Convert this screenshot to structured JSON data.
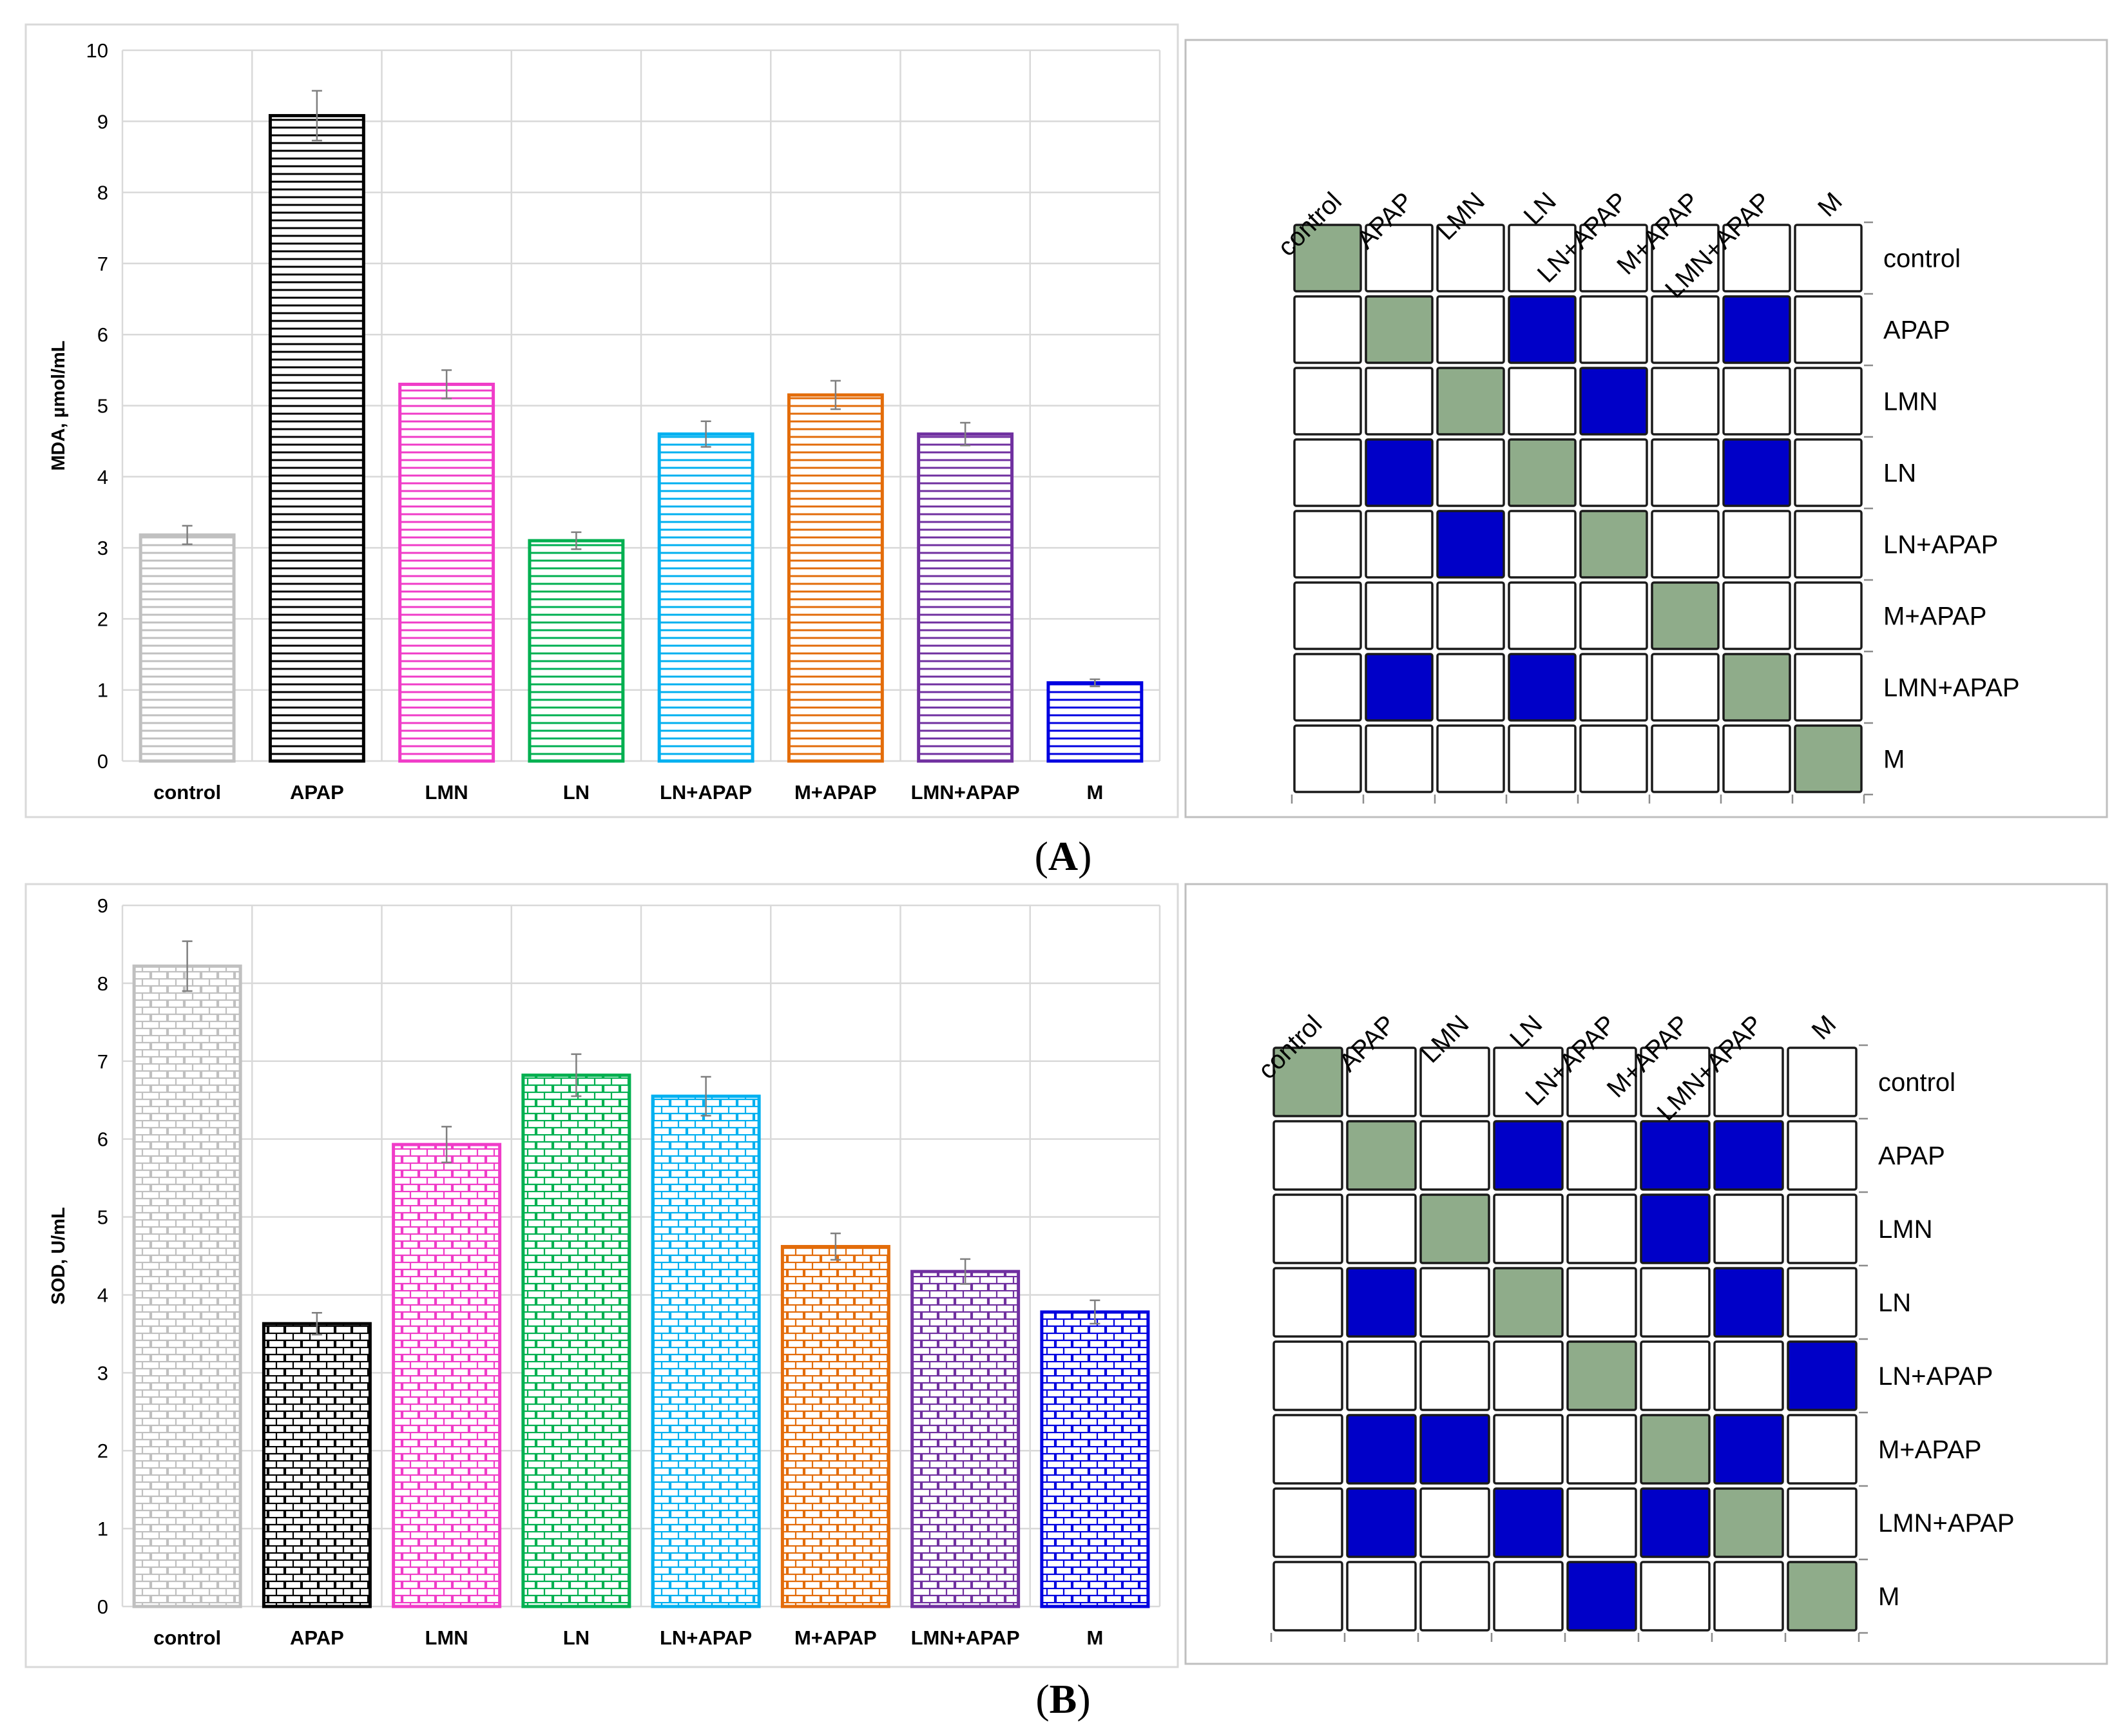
{
  "panels": [
    {
      "label": "A",
      "chart_data": {
        "type": "bar",
        "ylabel": "MDA, µmol/mL",
        "xlabel": "",
        "ylim": [
          0,
          10
        ],
        "yticks": [
          0,
          1,
          2,
          3,
          4,
          5,
          6,
          7,
          8,
          9,
          10
        ],
        "grid": true,
        "fill_pattern": "horizontal-lines",
        "categories": [
          "control",
          "APAP",
          "LMN",
          "LN",
          "LN+APAP",
          "M+APAP",
          "LMN+APAP",
          "M"
        ],
        "values": [
          3.18,
          9.08,
          5.3,
          3.1,
          4.6,
          5.15,
          4.6,
          1.1
        ],
        "errors": [
          0.13,
          0.35,
          0.2,
          0.12,
          0.18,
          0.2,
          0.16,
          0.05
        ],
        "colors": [
          "#c0c0c0",
          "#000000",
          "#f03cc8",
          "#00b050",
          "#00b0f0",
          "#e36c0a",
          "#7030a0",
          "#0000e0"
        ]
      },
      "matrix": {
        "col_labels": [
          "control",
          "APAP",
          "LMN",
          "LN",
          "LN+APAP",
          "M+APAP",
          "LMN+APAP",
          "M"
        ],
        "row_labels": [
          "control",
          "APAP",
          "LMN",
          "LN",
          "LN+APAP",
          "M+APAP",
          "LMN+APAP",
          "M"
        ],
        "cells": [
          [
            1,
            0,
            0,
            0,
            0,
            0,
            0,
            0
          ],
          [
            0,
            1,
            0,
            2,
            0,
            0,
            2,
            0
          ],
          [
            0,
            0,
            1,
            0,
            2,
            0,
            0,
            0
          ],
          [
            0,
            2,
            0,
            1,
            0,
            0,
            2,
            0
          ],
          [
            0,
            0,
            2,
            0,
            1,
            0,
            0,
            0
          ],
          [
            0,
            0,
            0,
            0,
            0,
            1,
            0,
            0
          ],
          [
            0,
            2,
            0,
            2,
            0,
            0,
            1,
            0
          ],
          [
            0,
            0,
            0,
            0,
            0,
            0,
            0,
            1
          ]
        ]
      }
    },
    {
      "label": "B",
      "chart_data": {
        "type": "bar",
        "ylabel": "SOD, U/mL",
        "xlabel": "",
        "ylim": [
          0,
          9
        ],
        "yticks": [
          0,
          1,
          2,
          3,
          4,
          5,
          6,
          7,
          8,
          9
        ],
        "grid": true,
        "fill_pattern": "brick",
        "categories": [
          "control",
          "APAP",
          "LMN",
          "LN",
          "LN+APAP",
          "M+APAP",
          "LMN+APAP",
          "M"
        ],
        "values": [
          8.22,
          3.63,
          5.93,
          6.82,
          6.55,
          4.62,
          4.3,
          3.78
        ],
        "errors": [
          0.32,
          0.14,
          0.23,
          0.27,
          0.25,
          0.17,
          0.16,
          0.15
        ],
        "colors": [
          "#c0c0c0",
          "#000000",
          "#f03cc8",
          "#00b050",
          "#00b0f0",
          "#e36c0a",
          "#7030a0",
          "#0000e0"
        ]
      },
      "matrix": {
        "col_labels": [
          "control",
          "APAP",
          "LMN",
          "LN",
          "LN+APAP",
          "M+APAP",
          "LMN+APAP",
          "M"
        ],
        "row_labels": [
          "control",
          "APAP",
          "LMN",
          "LN",
          "LN+APAP",
          "M+APAP",
          "LMN+APAP",
          "M"
        ],
        "cells": [
          [
            1,
            0,
            0,
            0,
            0,
            0,
            0,
            0
          ],
          [
            0,
            1,
            0,
            2,
            0,
            2,
            2,
            0
          ],
          [
            0,
            0,
            1,
            0,
            0,
            2,
            0,
            0
          ],
          [
            0,
            2,
            0,
            1,
            0,
            0,
            2,
            0
          ],
          [
            0,
            0,
            0,
            0,
            1,
            0,
            0,
            2
          ],
          [
            0,
            2,
            2,
            0,
            0,
            1,
            2,
            0
          ],
          [
            0,
            2,
            0,
            2,
            0,
            2,
            1,
            0
          ],
          [
            0,
            0,
            0,
            0,
            2,
            0,
            0,
            1
          ]
        ]
      }
    }
  ],
  "cell_colors": {
    "empty": "#ffffff",
    "diagonal": "#8fac8a",
    "significant": "#0000c8"
  }
}
